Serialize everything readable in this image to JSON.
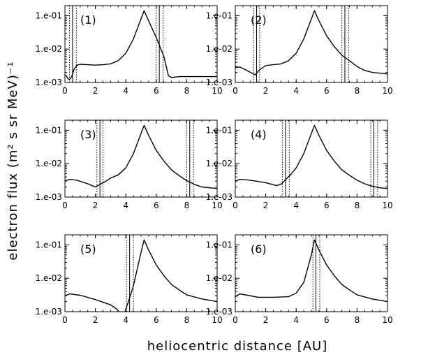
{
  "figure": {
    "ylabel": "electron flux (m² s sr MeV)⁻¹",
    "xlabel": "heliocentric distance [AU]"
  },
  "chart_data": [
    {
      "type": "line",
      "label": "(1)",
      "xlim": [
        0,
        10
      ],
      "ylim": [
        0.001,
        0.2
      ],
      "yscale": "log",
      "xticks": [
        "0",
        "2",
        "4",
        "6",
        "8",
        "10"
      ],
      "yticks": [
        "1.e-03",
        "1.e-02",
        "1.e-01"
      ],
      "x": [
        0.05,
        0.2,
        0.3,
        0.45,
        0.6,
        0.8,
        1.0,
        1.5,
        2.0,
        2.5,
        3.0,
        3.5,
        4.0,
        4.5,
        5.0,
        5.2,
        5.5,
        6.0,
        6.5,
        6.8,
        7.0,
        7.5,
        8.0,
        9.0,
        10.0
      ],
      "y": [
        0.0017,
        0.0013,
        0.0012,
        0.0015,
        0.0025,
        0.0033,
        0.0035,
        0.0034,
        0.0033,
        0.0034,
        0.0036,
        0.0045,
        0.0075,
        0.02,
        0.08,
        0.14,
        0.07,
        0.022,
        0.006,
        0.0016,
        0.0014,
        0.0015,
        0.0015,
        0.0015,
        0.0015
      ],
      "vlines_solid": [
        0.5,
        6.2
      ],
      "vlines_dotted": [
        0.3,
        0.75,
        6.0,
        6.45
      ]
    },
    {
      "type": "line",
      "label": "(2)",
      "xlim": [
        0,
        10
      ],
      "ylim": [
        0.001,
        0.2
      ],
      "yscale": "log",
      "xticks": [
        "0",
        "2",
        "4",
        "6",
        "8",
        "10"
      ],
      "yticks": [
        "1.e-03",
        "1.e-02",
        "1.e-01"
      ],
      "x": [
        0.0,
        0.3,
        0.6,
        1.0,
        1.3,
        1.6,
        2.0,
        2.5,
        3.0,
        3.5,
        4.0,
        4.5,
        5.0,
        5.2,
        5.5,
        6.0,
        6.5,
        7.0,
        7.5,
        8.0,
        8.5,
        9.0,
        10.0
      ],
      "y": [
        0.0028,
        0.0029,
        0.0025,
        0.002,
        0.0017,
        0.0024,
        0.0032,
        0.0034,
        0.0036,
        0.0045,
        0.0075,
        0.02,
        0.08,
        0.14,
        0.07,
        0.025,
        0.012,
        0.0065,
        0.0045,
        0.003,
        0.0023,
        0.002,
        0.0018
      ],
      "vlines_solid": [
        1.4,
        7.2
      ],
      "vlines_dotted": [
        1.2,
        1.6,
        7.0,
        7.45
      ]
    },
    {
      "type": "line",
      "label": "(3)",
      "xlim": [
        0,
        10
      ],
      "ylim": [
        0.001,
        0.2
      ],
      "yscale": "log",
      "xticks": [
        "0",
        "2",
        "4",
        "6",
        "8",
        "10"
      ],
      "yticks": [
        "1.e-03",
        "1.e-02",
        "1.e-01"
      ],
      "x": [
        0.0,
        0.3,
        0.8,
        1.5,
        2.0,
        2.3,
        2.7,
        3.0,
        3.5,
        4.0,
        4.5,
        5.0,
        5.2,
        5.5,
        6.0,
        6.5,
        7.0,
        7.5,
        8.0,
        8.5,
        9.0,
        10.0
      ],
      "y": [
        0.003,
        0.0034,
        0.0032,
        0.0025,
        0.002,
        0.0024,
        0.003,
        0.0037,
        0.0046,
        0.0075,
        0.02,
        0.08,
        0.14,
        0.07,
        0.025,
        0.012,
        0.0065,
        0.0044,
        0.0031,
        0.0024,
        0.002,
        0.0018
      ],
      "vlines_solid": [
        2.3,
        8.2
      ],
      "vlines_dotted": [
        2.1,
        2.5,
        8.0,
        8.45
      ]
    },
    {
      "type": "line",
      "label": "(4)",
      "xlim": [
        0,
        10
      ],
      "ylim": [
        0.001,
        0.2
      ],
      "yscale": "log",
      "xticks": [
        "0",
        "2",
        "4",
        "6",
        "8",
        "10"
      ],
      "yticks": [
        "1.e-03",
        "1.e-02",
        "1.e-01"
      ],
      "x": [
        0.0,
        0.3,
        1.0,
        2.0,
        2.7,
        3.0,
        3.3,
        3.6,
        4.0,
        4.5,
        5.0,
        5.2,
        5.5,
        6.0,
        6.5,
        7.0,
        7.5,
        8.0,
        8.5,
        9.0,
        9.5,
        10.0
      ],
      "y": [
        0.003,
        0.0034,
        0.0032,
        0.0027,
        0.0022,
        0.0024,
        0.0033,
        0.0045,
        0.0075,
        0.02,
        0.08,
        0.14,
        0.07,
        0.025,
        0.012,
        0.0065,
        0.0045,
        0.0032,
        0.0025,
        0.0021,
        0.0019,
        0.0018
      ],
      "vlines_solid": [
        3.3,
        9.1
      ],
      "vlines_dotted": [
        3.1,
        3.55,
        8.9,
        9.35
      ]
    },
    {
      "type": "line",
      "label": "(5)",
      "xlim": [
        0,
        10
      ],
      "ylim": [
        0.001,
        0.2
      ],
      "yscale": "log",
      "xticks": [
        "0",
        "2",
        "4",
        "6",
        "8",
        "10"
      ],
      "yticks": [
        "1.e-03",
        "1.e-02",
        "1.e-01"
      ],
      "x": [
        0.0,
        0.3,
        1.0,
        2.0,
        3.0,
        3.4,
        3.55
      ],
      "y": [
        0.003,
        0.0034,
        0.0031,
        0.0023,
        0.0016,
        0.0012,
        0.001
      ],
      "x2": [
        3.95,
        4.2,
        4.5,
        5.0,
        5.2,
        5.5,
        6.0,
        6.5,
        7.0,
        7.5,
        8.0,
        9.0,
        10.0
      ],
      "y2": [
        0.001,
        0.0022,
        0.006,
        0.06,
        0.14,
        0.07,
        0.025,
        0.012,
        0.0065,
        0.0045,
        0.0032,
        0.0024,
        0.002
      ],
      "vlines_solid": [
        4.25
      ],
      "vlines_dotted": [
        4.05,
        4.5
      ]
    },
    {
      "type": "line",
      "label": "(6)",
      "xlim": [
        0,
        10
      ],
      "ylim": [
        0.001,
        0.2
      ],
      "yscale": "log",
      "xticks": [
        "0",
        "2",
        "4",
        "6",
        "8",
        "10"
      ],
      "yticks": [
        "1.e-03",
        "1.e-02",
        "1.e-01"
      ],
      "x": [
        0.0,
        0.3,
        0.8,
        1.5,
        2.5,
        3.5,
        4.0,
        4.5,
        5.0,
        5.2,
        5.5,
        6.0,
        6.5,
        7.0,
        7.5,
        8.0,
        9.0,
        10.0
      ],
      "y": [
        0.0028,
        0.0034,
        0.0031,
        0.0027,
        0.0027,
        0.0028,
        0.0036,
        0.0075,
        0.05,
        0.14,
        0.07,
        0.025,
        0.012,
        0.0065,
        0.0045,
        0.0032,
        0.0024,
        0.002
      ],
      "vlines_solid": [
        5.3
      ],
      "vlines_dotted": [
        5.1,
        5.55
      ]
    }
  ]
}
